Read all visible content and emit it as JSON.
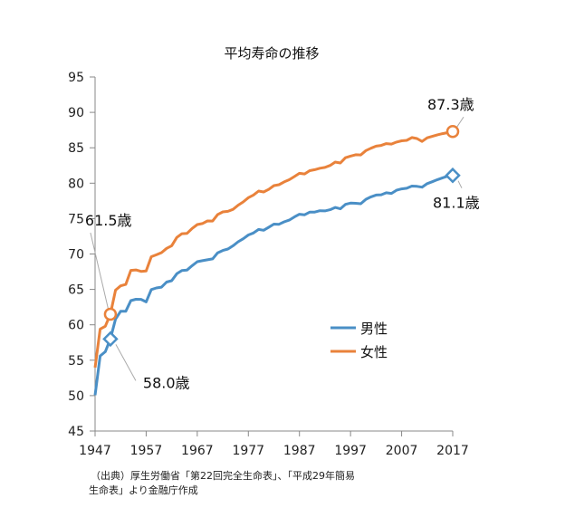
{
  "chart_data": {
    "type": "line",
    "title": "平均寿命の推移",
    "xlim": [
      1947,
      2017
    ],
    "ylim": [
      45,
      95
    ],
    "x_ticks": [
      1947,
      1957,
      1967,
      1977,
      1987,
      1997,
      2007,
      2017
    ],
    "y_ticks": [
      45,
      50,
      55,
      60,
      65,
      70,
      75,
      80,
      85,
      90,
      95
    ],
    "grid": false,
    "legend_position": "center-right",
    "series": [
      {
        "name": "男性",
        "color": "#4a8fc6",
        "x": [
          1947,
          1948,
          1949,
          1950,
          1951,
          1952,
          1953,
          1954,
          1955,
          1956,
          1957,
          1958,
          1959,
          1960,
          1961,
          1962,
          1963,
          1964,
          1965,
          1966,
          1967,
          1968,
          1969,
          1970,
          1971,
          1972,
          1973,
          1974,
          1975,
          1976,
          1977,
          1978,
          1979,
          1980,
          1981,
          1982,
          1983,
          1984,
          1985,
          1986,
          1987,
          1988,
          1989,
          1990,
          1991,
          1992,
          1993,
          1994,
          1995,
          1996,
          1997,
          1998,
          1999,
          2000,
          2001,
          2002,
          2003,
          2004,
          2005,
          2006,
          2007,
          2008,
          2009,
          2010,
          2011,
          2012,
          2013,
          2014,
          2015,
          2016,
          2017
        ],
        "values": [
          50.06,
          55.6,
          56.2,
          58.0,
          60.8,
          61.9,
          61.9,
          63.41,
          63.6,
          63.59,
          63.24,
          64.98,
          65.21,
          65.32,
          66.03,
          66.23,
          67.21,
          67.67,
          67.74,
          68.35,
          68.91,
          69.05,
          69.18,
          69.31,
          70.17,
          70.5,
          70.7,
          71.16,
          71.73,
          72.15,
          72.69,
          72.97,
          73.46,
          73.35,
          73.79,
          74.22,
          74.2,
          74.54,
          74.78,
          75.23,
          75.61,
          75.54,
          75.91,
          75.92,
          76.11,
          76.09,
          76.25,
          76.57,
          76.38,
          77.01,
          77.19,
          77.16,
          77.1,
          77.72,
          78.07,
          78.32,
          78.36,
          78.64,
          78.56,
          79.0,
          79.19,
          79.29,
          79.59,
          79.55,
          79.44,
          79.94,
          80.21,
          80.5,
          80.75,
          80.98,
          81.09
        ]
      },
      {
        "name": "女性",
        "color": "#e9823b",
        "x": [
          1947,
          1948,
          1949,
          1950,
          1951,
          1952,
          1953,
          1954,
          1955,
          1956,
          1957,
          1958,
          1959,
          1960,
          1961,
          1962,
          1963,
          1964,
          1965,
          1966,
          1967,
          1968,
          1969,
          1970,
          1971,
          1972,
          1973,
          1974,
          1975,
          1976,
          1977,
          1978,
          1979,
          1980,
          1981,
          1982,
          1983,
          1984,
          1985,
          1986,
          1987,
          1988,
          1989,
          1990,
          1991,
          1992,
          1993,
          1994,
          1995,
          1996,
          1997,
          1998,
          1999,
          2000,
          2001,
          2002,
          2003,
          2004,
          2005,
          2006,
          2007,
          2008,
          2009,
          2010,
          2011,
          2012,
          2013,
          2014,
          2015,
          2016,
          2017
        ],
        "values": [
          53.96,
          59.4,
          59.8,
          61.5,
          64.9,
          65.5,
          65.7,
          67.69,
          67.75,
          67.54,
          67.6,
          69.61,
          69.88,
          70.19,
          70.79,
          71.16,
          72.34,
          72.87,
          72.92,
          73.61,
          74.15,
          74.3,
          74.67,
          74.66,
          75.58,
          75.94,
          76.02,
          76.31,
          76.89,
          77.35,
          77.95,
          78.33,
          78.89,
          78.76,
          79.13,
          79.66,
          79.78,
          80.18,
          80.48,
          80.93,
          81.39,
          81.3,
          81.77,
          81.9,
          82.11,
          82.22,
          82.51,
          82.98,
          82.85,
          83.59,
          83.82,
          84.01,
          83.99,
          84.6,
          84.93,
          85.23,
          85.33,
          85.59,
          85.52,
          85.81,
          85.99,
          86.05,
          86.44,
          86.3,
          85.9,
          86.41,
          86.61,
          86.83,
          86.99,
          87.14,
          87.26
        ]
      }
    ],
    "annotations": [
      {
        "text": "61.5歳",
        "x": 1950,
        "y": 61.5,
        "series": "女性",
        "marker": "circle"
      },
      {
        "text": "58.0歳",
        "x": 1950,
        "y": 58.0,
        "series": "男性",
        "marker": "diamond"
      },
      {
        "text": "87.3歳",
        "x": 2017,
        "y": 87.3,
        "series": "女性",
        "marker": "circle"
      },
      {
        "text": "81.1歳",
        "x": 2017,
        "y": 81.1,
        "series": "男性",
        "marker": "diamond"
      }
    ]
  },
  "source": {
    "line1": "（出典）厚生労働省「第22回完全生命表」、「平成29年簡易",
    "line2": "生命表」より金融庁作成"
  }
}
